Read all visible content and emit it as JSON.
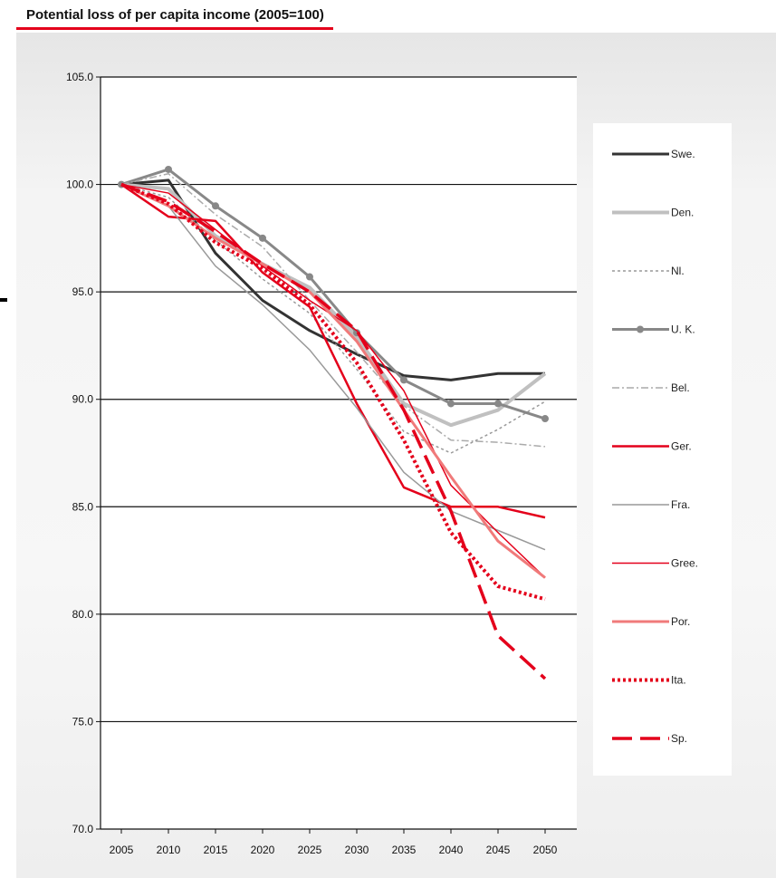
{
  "chart_data": {
    "type": "line",
    "title": "Potential loss of per capita income (2005=100)",
    "xlabel": "",
    "ylabel": "",
    "x": [
      "2005",
      "2010",
      "2015",
      "2020",
      "2025",
      "2030",
      "2035",
      "2040",
      "2045",
      "2050"
    ],
    "ylim": [
      70,
      105
    ],
    "yticks": [
      "70.0",
      "75.0",
      "80.0",
      "85.0",
      "90.0",
      "95.0",
      "100.0",
      "105.0"
    ],
    "grid": "horizontal",
    "legend_position": "right",
    "series": [
      {
        "name": "Swe.",
        "color": "#333333",
        "style": "solid",
        "width": 3,
        "values": [
          100,
          100.2,
          96.8,
          94.6,
          93.2,
          92.1,
          91.1,
          90.9,
          91.2,
          91.2
        ]
      },
      {
        "name": "Den.",
        "color": "#c0c0c0",
        "style": "solid",
        "width": 4,
        "values": [
          100,
          99.8,
          97.6,
          96.3,
          95.2,
          92.9,
          89.8,
          88.8,
          89.5,
          91.2
        ]
      },
      {
        "name": "Nl.",
        "color": "#999999",
        "style": "dotted",
        "width": 1.5,
        "values": [
          100,
          99.4,
          97.4,
          95.6,
          94.0,
          91.4,
          88.5,
          87.5,
          88.6,
          89.9
        ]
      },
      {
        "name": "U. K.",
        "color": "#888888",
        "style": "solid",
        "width": 3,
        "marker": true,
        "values": [
          100,
          100.7,
          99.0,
          97.5,
          95.7,
          93.1,
          90.9,
          89.8,
          89.8,
          89.1
        ]
      },
      {
        "name": "Bel.",
        "color": "#aaaaaa",
        "style": "dashdot",
        "width": 1.5,
        "values": [
          100,
          100.5,
          98.6,
          97.1,
          94.6,
          92.2,
          89.7,
          88.1,
          88.0,
          87.8
        ]
      },
      {
        "name": "Ger.",
        "color": "#e4001b",
        "style": "solid",
        "width": 2.5,
        "values": [
          100,
          98.5,
          98.3,
          95.9,
          94.3,
          89.8,
          85.9,
          85.0,
          85.0,
          84.5
        ]
      },
      {
        "name": "Fra.",
        "color": "#999999",
        "style": "solid",
        "width": 1.5,
        "values": [
          100,
          99.0,
          96.2,
          94.4,
          92.3,
          89.6,
          86.6,
          84.8,
          83.9,
          83.0
        ]
      },
      {
        "name": "Gree.",
        "color": "#e4001b",
        "style": "solid",
        "width": 1.5,
        "values": [
          100,
          99.6,
          97.9,
          96.2,
          94.6,
          93.2,
          90.4,
          86.0,
          83.8,
          81.7
        ]
      },
      {
        "name": "Por.",
        "color": "#f07a7a",
        "style": "solid",
        "width": 3,
        "values": [
          100,
          99.0,
          97.5,
          96.3,
          95.0,
          92.7,
          89.5,
          86.4,
          83.4,
          81.7
        ]
      },
      {
        "name": "Ita.",
        "color": "#e4001b",
        "style": "dotted",
        "width": 4,
        "values": [
          100,
          99.1,
          97.3,
          96.1,
          94.4,
          91.7,
          88.1,
          83.8,
          81.3,
          80.7
        ]
      },
      {
        "name": "Sp.",
        "color": "#e4001b",
        "style": "longdash",
        "width": 3.5,
        "values": [
          100,
          99.2,
          97.8,
          96.3,
          95.0,
          93.2,
          89.5,
          84.8,
          79.0,
          77.0
        ]
      }
    ]
  }
}
